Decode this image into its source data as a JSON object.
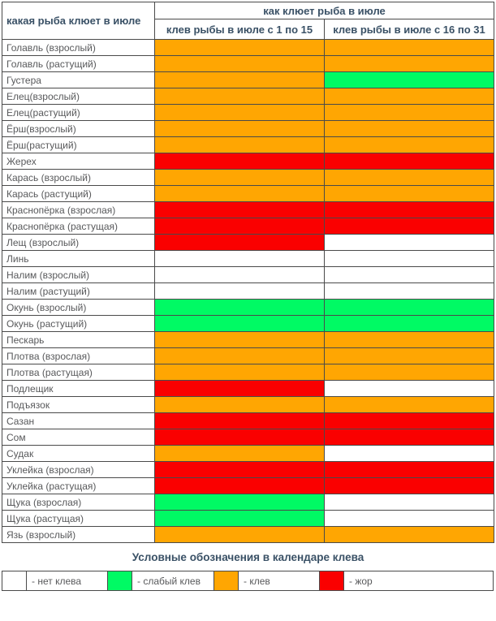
{
  "chart_data": {
    "type": "heatmap",
    "corner_header": "какая рыба клюет в июле",
    "group_header": "как клюет рыба в июле",
    "columns": [
      "клев рыбы в июле с 1 по 15",
      "клев рыбы в июле с 16 по 31"
    ],
    "levels": {
      "none": {
        "label": "- нет клева",
        "color": "#FFFFFF"
      },
      "weak": {
        "label": "- слабый клев",
        "color": "#00FA64"
      },
      "klev": {
        "label": "- клев",
        "color": "#FFA602"
      },
      "zhor": {
        "label": "- жор",
        "color": "#FA0000"
      }
    },
    "rows": [
      {
        "name": "Голавль (взрослый)",
        "values": [
          "klev",
          "klev"
        ]
      },
      {
        "name": "Голавль (растущий)",
        "values": [
          "klev",
          "klev"
        ]
      },
      {
        "name": "Густера",
        "values": [
          "klev",
          "weak"
        ]
      },
      {
        "name": "Елец(взрослый)",
        "values": [
          "klev",
          "klev"
        ]
      },
      {
        "name": "Елец(растущий)",
        "values": [
          "klev",
          "klev"
        ]
      },
      {
        "name": "Ёрш(взрослый)",
        "values": [
          "klev",
          "klev"
        ]
      },
      {
        "name": "Ёрш(растущий)",
        "values": [
          "klev",
          "klev"
        ]
      },
      {
        "name": "Жерех",
        "values": [
          "zhor",
          "zhor"
        ]
      },
      {
        "name": "Карась (взрослый)",
        "values": [
          "klev",
          "klev"
        ]
      },
      {
        "name": "Карась (растущий)",
        "values": [
          "klev",
          "klev"
        ]
      },
      {
        "name": "Краснопёрка (взрослая)",
        "values": [
          "zhor",
          "zhor"
        ]
      },
      {
        "name": "Краснопёрка (растущая)",
        "values": [
          "zhor",
          "zhor"
        ]
      },
      {
        "name": "Лещ (взрослый)",
        "values": [
          "zhor",
          "none"
        ]
      },
      {
        "name": "Линь",
        "values": [
          "none",
          "none"
        ]
      },
      {
        "name": "Налим (взрослый)",
        "values": [
          "none",
          "none"
        ]
      },
      {
        "name": "Налим (растущий)",
        "values": [
          "none",
          "none"
        ]
      },
      {
        "name": "Окунь (взрослый)",
        "values": [
          "weak",
          "weak"
        ]
      },
      {
        "name": "Окунь (растущий)",
        "values": [
          "weak",
          "weak"
        ]
      },
      {
        "name": "Пескарь",
        "values": [
          "klev",
          "klev"
        ]
      },
      {
        "name": "Плотва (взрослая)",
        "values": [
          "klev",
          "klev"
        ]
      },
      {
        "name": "Плотва (растущая)",
        "values": [
          "klev",
          "klev"
        ]
      },
      {
        "name": "Подлещик",
        "values": [
          "zhor",
          "none"
        ]
      },
      {
        "name": "Подъязок",
        "values": [
          "klev",
          "klev"
        ]
      },
      {
        "name": "Сазан",
        "values": [
          "zhor",
          "zhor"
        ]
      },
      {
        "name": "Сом",
        "values": [
          "zhor",
          "zhor"
        ]
      },
      {
        "name": "Судак",
        "values": [
          "klev",
          "none"
        ]
      },
      {
        "name": "Уклейка (взрослая)",
        "values": [
          "zhor",
          "zhor"
        ]
      },
      {
        "name": "Уклейка (растущая)",
        "values": [
          "zhor",
          "zhor"
        ]
      },
      {
        "name": "Щука (взрослая)",
        "values": [
          "weak",
          "none"
        ]
      },
      {
        "name": "Щука (растущая)",
        "values": [
          "weak",
          "none"
        ]
      },
      {
        "name": "Язь (взрослый)",
        "values": [
          "klev",
          "klev"
        ]
      }
    ]
  },
  "legend": {
    "title": "Условные обозначения в календаре клева",
    "order": [
      "none",
      "weak",
      "klev",
      "zhor"
    ]
  }
}
